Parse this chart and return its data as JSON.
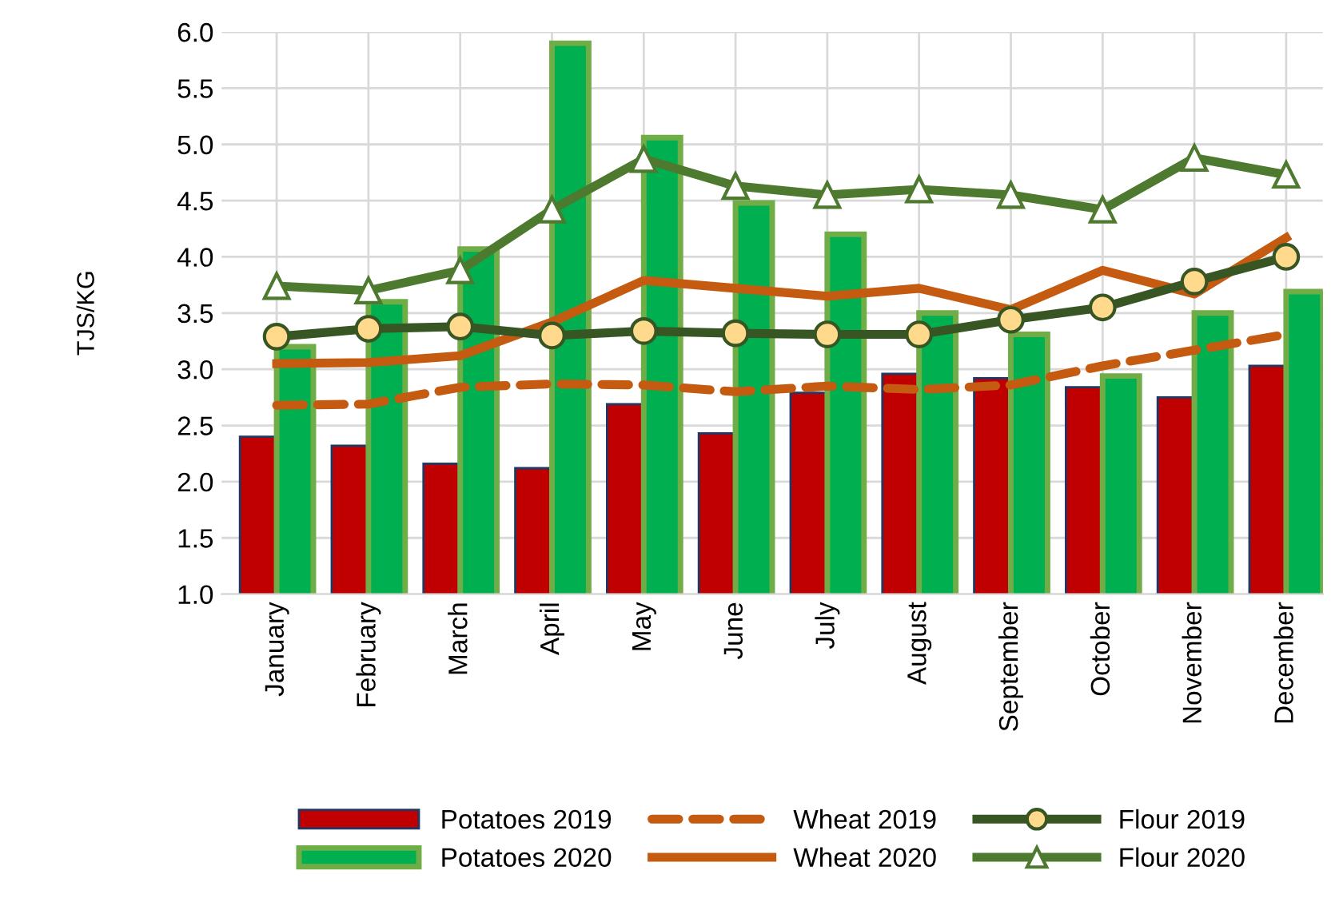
{
  "chart_data": {
    "type": "bar",
    "ylabel": "TJS/KG",
    "categories": [
      "January",
      "February",
      "March",
      "April",
      "May",
      "June",
      "July",
      "August",
      "September",
      "October",
      "November",
      "December"
    ],
    "series": [
      {
        "name": "Potatoes 2019",
        "color": "#c00000",
        "values": [
          2.4,
          2.32,
          2.16,
          2.12,
          2.69,
          2.43,
          2.79,
          2.96,
          2.92,
          2.84,
          2.75,
          3.03
        ]
      },
      {
        "name": "Potatoes 2020",
        "color": "#00b050",
        "values": [
          3.2,
          3.6,
          4.07,
          5.9,
          5.06,
          4.48,
          4.2,
          3.5,
          3.31,
          2.94,
          3.5,
          3.69
        ]
      },
      {
        "name": "Wheat 2019",
        "type": "line",
        "color": "#c55a11",
        "line_style": "dashed",
        "marker": "none",
        "values": [
          2.68,
          2.69,
          2.84,
          2.87,
          2.86,
          2.8,
          2.85,
          2.82,
          2.86,
          3.03,
          3.17,
          3.31
        ]
      },
      {
        "name": "Wheat 2020",
        "type": "line",
        "color": "#c55a11",
        "line_style": "solid",
        "marker": "none",
        "values": [
          3.05,
          3.06,
          3.12,
          3.42,
          3.79,
          3.72,
          3.65,
          3.72,
          3.53,
          3.88,
          3.67,
          4.17
        ]
      },
      {
        "name": "Flour 2019",
        "type": "line",
        "color": "#375623",
        "line_style": "solid",
        "marker": "circle",
        "values": [
          3.29,
          3.36,
          3.38,
          3.3,
          3.34,
          3.32,
          3.31,
          3.31,
          3.44,
          3.55,
          3.78,
          4.0
        ]
      },
      {
        "name": "Flour 2020",
        "type": "line",
        "color": "#4e7a2f",
        "line_style": "solid",
        "marker": "triangle",
        "values": [
          3.74,
          3.7,
          3.88,
          4.42,
          4.87,
          4.63,
          4.55,
          4.6,
          4.55,
          4.42,
          4.88,
          4.73
        ]
      }
    ],
    "ylim": [
      1.0,
      6.0
    ],
    "yticks": [
      {
        "value": 1.0,
        "label": "1.0"
      },
      {
        "value": 1.5,
        "label": "1.5"
      },
      {
        "value": 2.0,
        "label": "2.0"
      },
      {
        "value": 2.5,
        "label": "2.5"
      },
      {
        "value": 3.0,
        "label": "3.0"
      },
      {
        "value": 3.5,
        "label": "3.5"
      },
      {
        "value": 4.0,
        "label": "4.0"
      },
      {
        "value": 4.5,
        "label": "4.5"
      },
      {
        "value": 5.0,
        "label": "5.0"
      },
      {
        "value": 5.5,
        "label": "5.5"
      },
      {
        "value": 6.0,
        "label": "6.0"
      }
    ],
    "grid": true,
    "legend": "bottom"
  }
}
